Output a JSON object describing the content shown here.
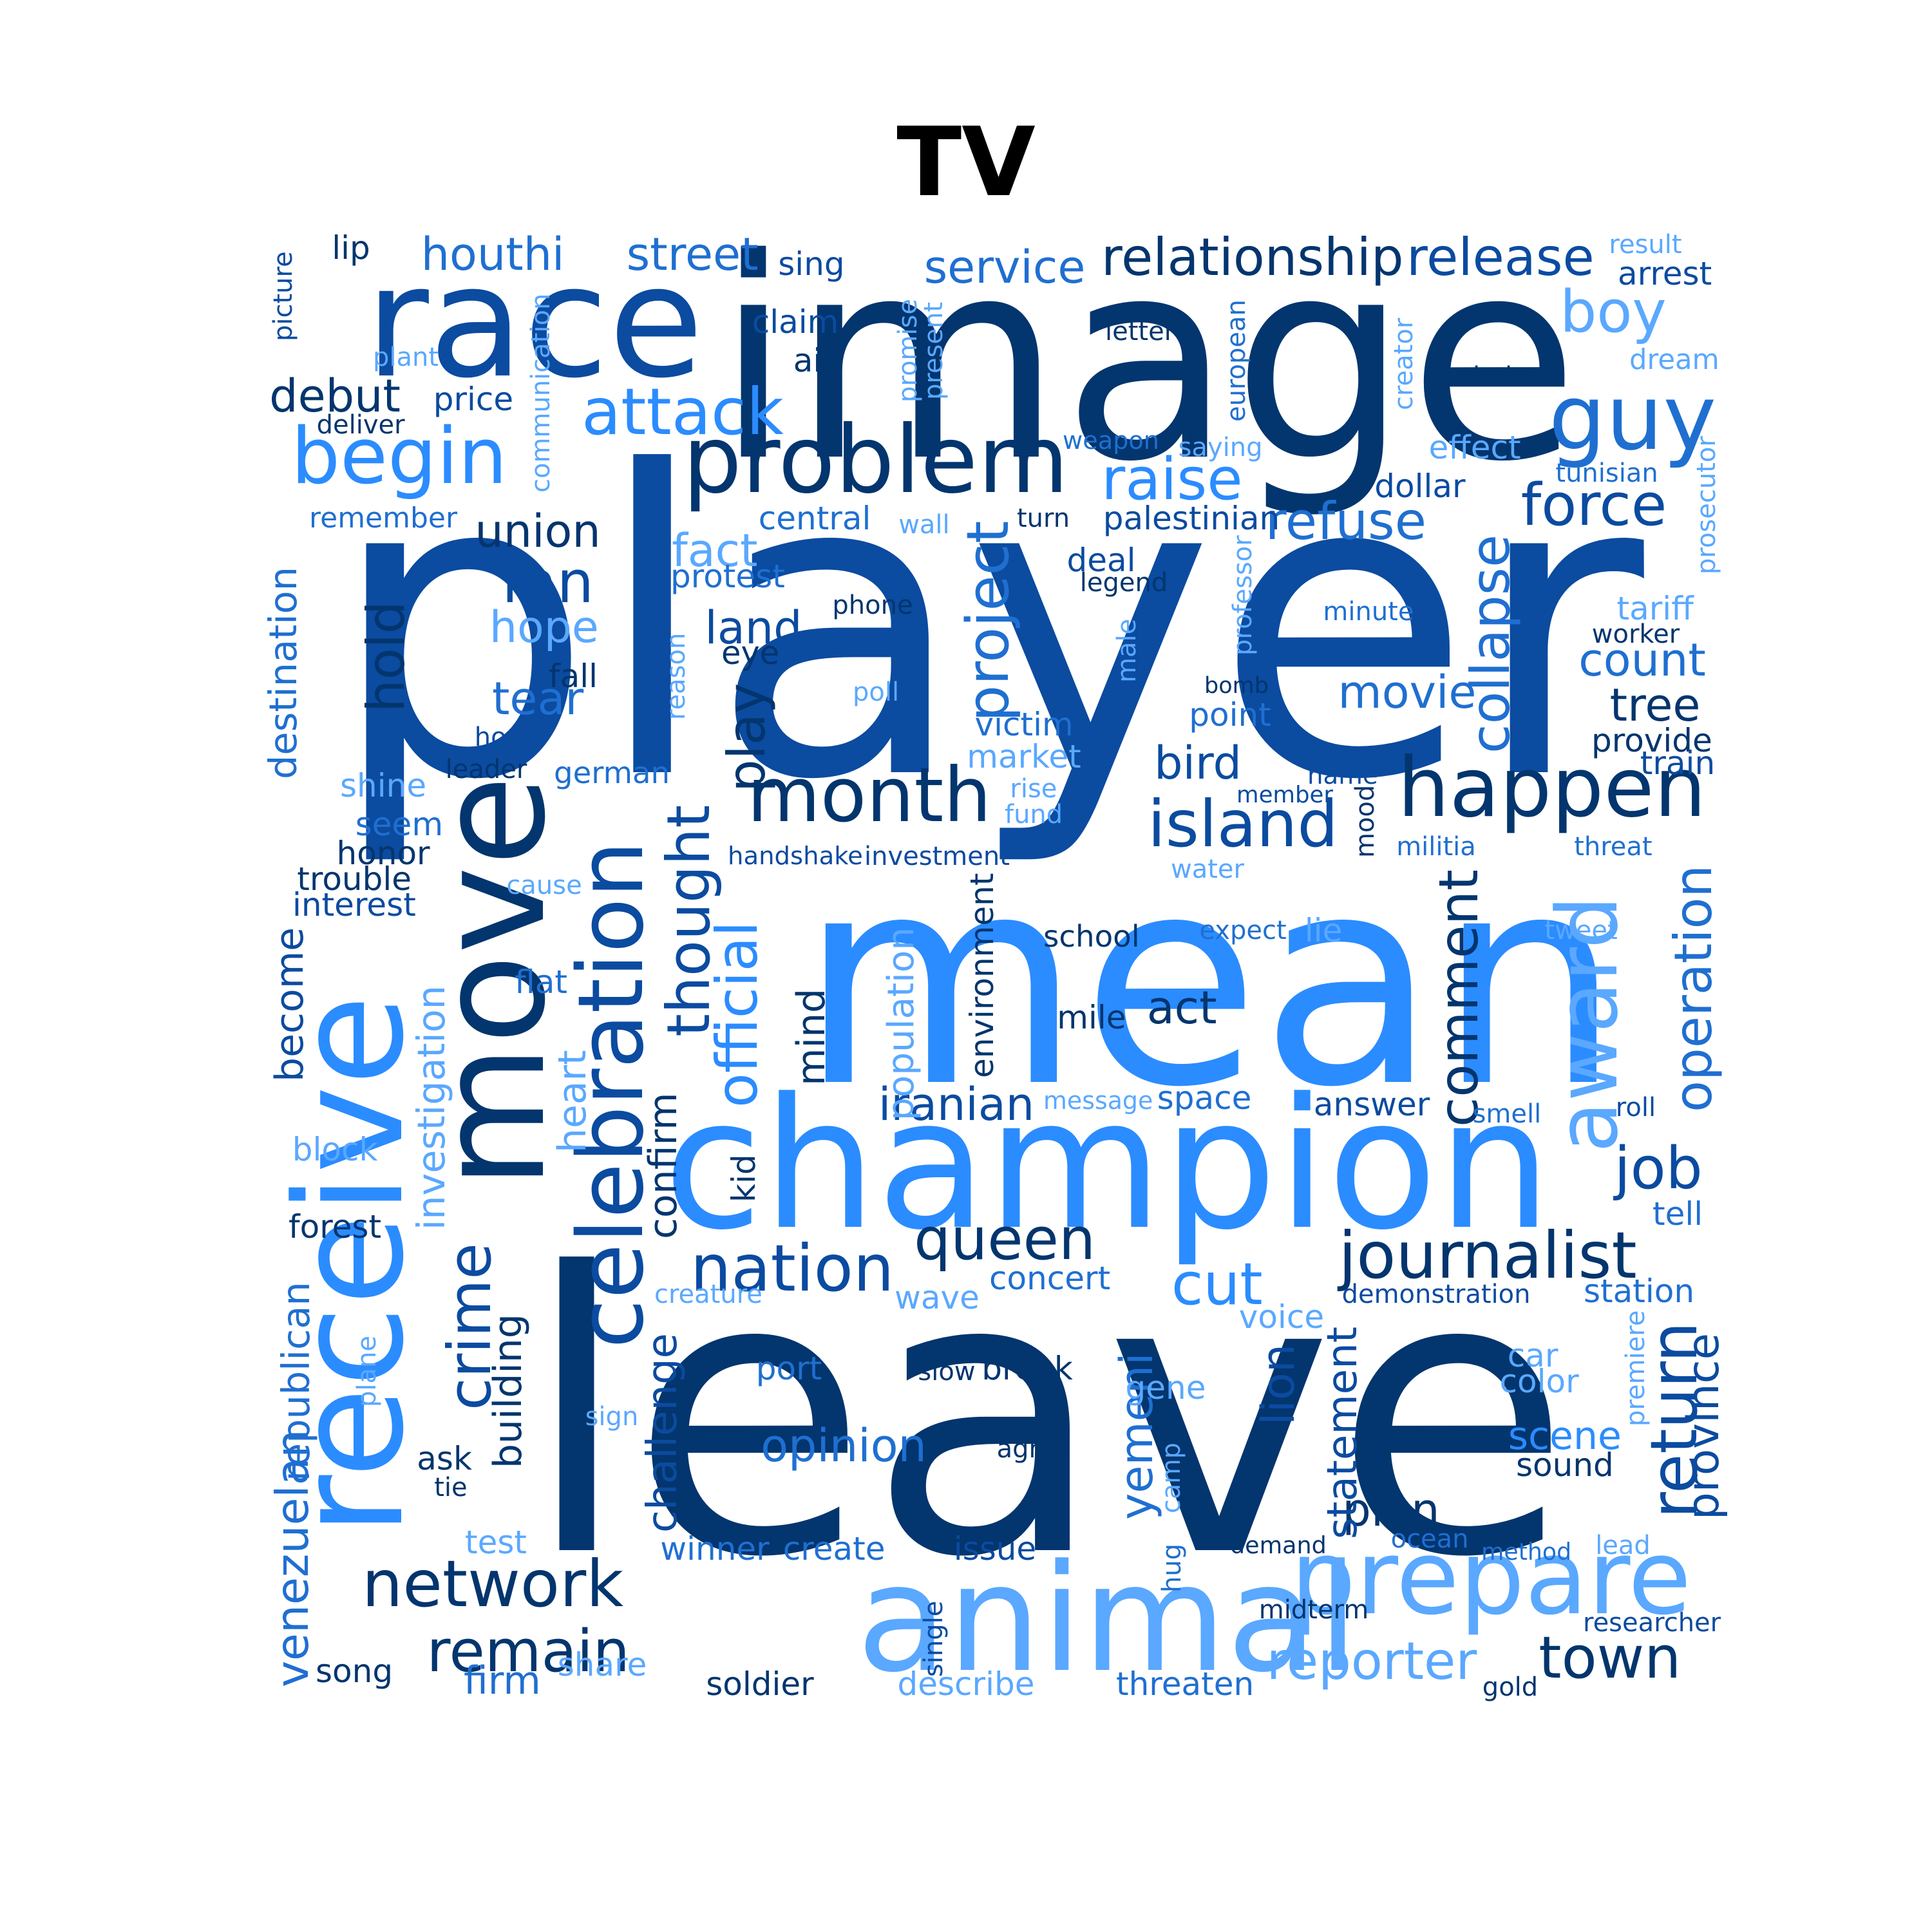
{
  "title": "TV",
  "palette": {
    "darkest": "#03356e",
    "dark": "#0b4ba0",
    "medium": "#1f6fd1",
    "bright": "#2b8cff",
    "light": "#5aa8ff"
  },
  "words": [
    {
      "t": "player",
      "c": "dark"
    },
    {
      "t": "leave",
      "c": "darkest"
    },
    {
      "t": "mean",
      "c": "bright"
    },
    {
      "t": "image",
      "c": "darkest"
    },
    {
      "t": "race",
      "c": "dark"
    },
    {
      "t": "champion",
      "c": "bright"
    },
    {
      "t": "animal",
      "c": "light"
    },
    {
      "t": "receive",
      "c": "bright"
    },
    {
      "t": "move",
      "c": "darkest"
    },
    {
      "t": "celebration",
      "c": "dark"
    },
    {
      "t": "prepare",
      "c": "light"
    },
    {
      "t": "problem",
      "c": "darkest"
    },
    {
      "t": "month",
      "c": "darkest"
    },
    {
      "t": "happen",
      "c": "darkest"
    },
    {
      "t": "begin",
      "c": "bright"
    },
    {
      "t": "guy",
      "c": "medium"
    },
    {
      "t": "journalist",
      "c": "darkest"
    },
    {
      "t": "network",
      "c": "darkest"
    },
    {
      "t": "island",
      "c": "dark"
    },
    {
      "t": "nation",
      "c": "dark"
    },
    {
      "t": "remain",
      "c": "darkest"
    },
    {
      "t": "award",
      "c": "light"
    },
    {
      "t": "attack",
      "c": "bright"
    },
    {
      "t": "raise",
      "c": "bright"
    },
    {
      "t": "queen",
      "c": "darkest"
    },
    {
      "t": "comment",
      "c": "darkest"
    },
    {
      "t": "crime",
      "c": "dark"
    },
    {
      "t": "thought",
      "c": "dark"
    },
    {
      "t": "cut",
      "c": "bright"
    },
    {
      "t": "town",
      "c": "darkest"
    },
    {
      "t": "force",
      "c": "dark"
    },
    {
      "t": "fan",
      "c": "dark"
    },
    {
      "t": "boy",
      "c": "light"
    },
    {
      "t": "job",
      "c": "dark"
    },
    {
      "t": "return",
      "c": "dark"
    },
    {
      "t": "reporter",
      "c": "light"
    },
    {
      "t": "release",
      "c": "dark"
    },
    {
      "t": "relationship",
      "c": "darkest"
    },
    {
      "t": "project",
      "c": "medium"
    },
    {
      "t": "official",
      "c": "bright"
    },
    {
      "t": "refuse",
      "c": "medium"
    },
    {
      "t": "collapse",
      "c": "medium"
    },
    {
      "t": "opinion",
      "c": "medium"
    },
    {
      "t": "debut",
      "c": "darkest"
    },
    {
      "t": "houthi",
      "c": "medium"
    },
    {
      "t": "street",
      "c": "medium"
    },
    {
      "t": "service",
      "c": "medium"
    },
    {
      "t": "union",
      "c": "darkest"
    },
    {
      "t": "hope",
      "c": "light"
    },
    {
      "t": "fact",
      "c": "light"
    },
    {
      "t": "tear",
      "c": "medium"
    },
    {
      "t": "land",
      "c": "dark"
    },
    {
      "t": "hold",
      "c": "darkest"
    },
    {
      "t": "play",
      "c": "darkest"
    },
    {
      "t": "movie",
      "c": "medium"
    },
    {
      "t": "count",
      "c": "medium"
    },
    {
      "t": "tree",
      "c": "darkest"
    },
    {
      "t": "operation",
      "c": "medium"
    },
    {
      "t": "iranian",
      "c": "dark"
    },
    {
      "t": "bird",
      "c": "dark"
    },
    {
      "t": "act",
      "c": "darkest"
    },
    {
      "t": "scene",
      "c": "bright"
    },
    {
      "t": "plan",
      "c": "darkest"
    },
    {
      "t": "firm",
      "c": "medium"
    },
    {
      "t": "challenge",
      "c": "dark"
    },
    {
      "t": "victim",
      "c": "medium"
    },
    {
      "t": "market",
      "c": "light"
    },
    {
      "t": "become",
      "c": "dark"
    },
    {
      "t": "yemeni",
      "c": "medium"
    },
    {
      "t": "venezuelan",
      "c": "medium"
    },
    {
      "t": "statement",
      "c": "dark"
    },
    {
      "t": "province",
      "c": "dark"
    },
    {
      "t": "lion",
      "c": "dark"
    },
    {
      "t": "break",
      "c": "darkest"
    },
    {
      "t": "sound",
      "c": "darkest"
    },
    {
      "t": "winner",
      "c": "medium"
    },
    {
      "t": "create",
      "c": "medium"
    },
    {
      "t": "issue",
      "c": "dark"
    },
    {
      "t": "soldier",
      "c": "darkest"
    },
    {
      "t": "describe",
      "c": "light"
    },
    {
      "t": "threaten",
      "c": "medium"
    },
    {
      "t": "song",
      "c": "darkest"
    },
    {
      "t": "share",
      "c": "light"
    },
    {
      "t": "interest",
      "c": "dark"
    },
    {
      "t": "trouble",
      "c": "darkest"
    },
    {
      "t": "block",
      "c": "light"
    },
    {
      "t": "forest",
      "c": "darkest"
    },
    {
      "t": "ask",
      "c": "darkest"
    },
    {
      "t": "tie",
      "c": "darkest"
    },
    {
      "t": "test",
      "c": "light"
    },
    {
      "t": "building",
      "c": "darkest"
    },
    {
      "t": "republican",
      "c": "medium"
    },
    {
      "t": "investigation",
      "c": "light"
    },
    {
      "t": "confirm",
      "c": "darkest"
    },
    {
      "t": "heart",
      "c": "light"
    },
    {
      "t": "kid",
      "c": "darkest"
    },
    {
      "t": "mind",
      "c": "darkest"
    },
    {
      "t": "population",
      "c": "light"
    },
    {
      "t": "environment",
      "c": "darkest"
    },
    {
      "t": "space",
      "c": "medium"
    },
    {
      "t": "answer",
      "c": "dark"
    },
    {
      "t": "message",
      "c": "light"
    },
    {
      "t": "concert",
      "c": "medium"
    },
    {
      "t": "wave",
      "c": "light"
    },
    {
      "t": "voice",
      "c": "light"
    },
    {
      "t": "demonstration",
      "c": "dark"
    },
    {
      "t": "station",
      "c": "medium"
    },
    {
      "t": "creature",
      "c": "light"
    },
    {
      "t": "port",
      "c": "medium"
    },
    {
      "t": "slow",
      "c": "darkest"
    },
    {
      "t": "gene",
      "c": "light"
    },
    {
      "t": "car",
      "c": "light"
    },
    {
      "t": "color",
      "c": "light"
    },
    {
      "t": "agree",
      "c": "darkest"
    },
    {
      "t": "camp",
      "c": "light"
    },
    {
      "t": "hug",
      "c": "medium"
    },
    {
      "t": "single",
      "c": "dark"
    },
    {
      "t": "demand",
      "c": "darkest"
    },
    {
      "t": "ocean",
      "c": "medium"
    },
    {
      "t": "method",
      "c": "medium"
    },
    {
      "t": "lead",
      "c": "light"
    },
    {
      "t": "midterm",
      "c": "darkest"
    },
    {
      "t": "researcher",
      "c": "dark"
    },
    {
      "t": "gold",
      "c": "darkest"
    },
    {
      "t": "premiere",
      "c": "light"
    },
    {
      "t": "sign",
      "c": "light"
    },
    {
      "t": "plane",
      "c": "light"
    },
    {
      "t": "lip",
      "c": "darkest"
    },
    {
      "t": "picture",
      "c": "dark"
    },
    {
      "t": "plant",
      "c": "light"
    },
    {
      "t": "deliver",
      "c": "darkest"
    },
    {
      "t": "price",
      "c": "dark"
    },
    {
      "t": "communication",
      "c": "light"
    },
    {
      "t": "remember",
      "c": "medium"
    },
    {
      "t": "sing",
      "c": "dark"
    },
    {
      "t": "claim",
      "c": "dark"
    },
    {
      "t": "aid",
      "c": "darkest"
    },
    {
      "t": "promise",
      "c": "light"
    },
    {
      "t": "present",
      "c": "light"
    },
    {
      "t": "letter",
      "c": "darkest"
    },
    {
      "t": "european",
      "c": "medium"
    },
    {
      "t": "creator",
      "c": "light"
    },
    {
      "t": "choice",
      "c": "darkest"
    },
    {
      "t": "result",
      "c": "light"
    },
    {
      "t": "arrest",
      "c": "dark"
    },
    {
      "t": "dream",
      "c": "light"
    },
    {
      "t": "weapon",
      "c": "medium"
    },
    {
      "t": "saying",
      "c": "light"
    },
    {
      "t": "effect",
      "c": "light"
    },
    {
      "t": "tunisian",
      "c": "medium"
    },
    {
      "t": "dollar",
      "c": "dark"
    },
    {
      "t": "central",
      "c": "medium"
    },
    {
      "t": "wall",
      "c": "light"
    },
    {
      "t": "turn",
      "c": "darkest"
    },
    {
      "t": "palestinian",
      "c": "dark"
    },
    {
      "t": "prosecutor",
      "c": "light"
    },
    {
      "t": "deal",
      "c": "dark"
    },
    {
      "t": "legend",
      "c": "darkest"
    },
    {
      "t": "professor",
      "c": "light"
    },
    {
      "t": "protest",
      "c": "medium"
    },
    {
      "t": "phone",
      "c": "darkest"
    },
    {
      "t": "minute",
      "c": "medium"
    },
    {
      "t": "tariff",
      "c": "light"
    },
    {
      "t": "worker",
      "c": "darkest"
    },
    {
      "t": "reason",
      "c": "light"
    },
    {
      "t": "eye",
      "c": "darkest"
    },
    {
      "t": "fall",
      "c": "darkest"
    },
    {
      "t": "male",
      "c": "light"
    },
    {
      "t": "bomb",
      "c": "darkest"
    },
    {
      "t": "poll",
      "c": "light"
    },
    {
      "t": "point",
      "c": "medium"
    },
    {
      "t": "provide",
      "c": "darkest"
    },
    {
      "t": "train",
      "c": "dark"
    },
    {
      "t": "destination",
      "c": "medium"
    },
    {
      "t": "host",
      "c": "dark"
    },
    {
      "t": "leader",
      "c": "darkest"
    },
    {
      "t": "german",
      "c": "medium"
    },
    {
      "t": "shine",
      "c": "light"
    },
    {
      "t": "rise",
      "c": "light"
    },
    {
      "t": "fund",
      "c": "light"
    },
    {
      "t": "member",
      "c": "dark"
    },
    {
      "t": "name",
      "c": "dark"
    },
    {
      "t": "mood",
      "c": "darkest"
    },
    {
      "t": "seem",
      "c": "medium"
    },
    {
      "t": "honor",
      "c": "darkest"
    },
    {
      "t": "handshake",
      "c": "dark"
    },
    {
      "t": "investment",
      "c": "dark"
    },
    {
      "t": "militia",
      "c": "medium"
    },
    {
      "t": "threat",
      "c": "medium"
    },
    {
      "t": "cause",
      "c": "light"
    },
    {
      "t": "water",
      "c": "light"
    },
    {
      "t": "school",
      "c": "darkest"
    },
    {
      "t": "expect",
      "c": "medium"
    },
    {
      "t": "lie",
      "c": "light"
    },
    {
      "t": "tweet",
      "c": "light"
    },
    {
      "t": "flat",
      "c": "medium"
    },
    {
      "t": "mile",
      "c": "darkest"
    },
    {
      "t": "smell",
      "c": "medium"
    },
    {
      "t": "roll",
      "c": "dark"
    },
    {
      "t": "tell",
      "c": "medium"
    }
  ]
}
